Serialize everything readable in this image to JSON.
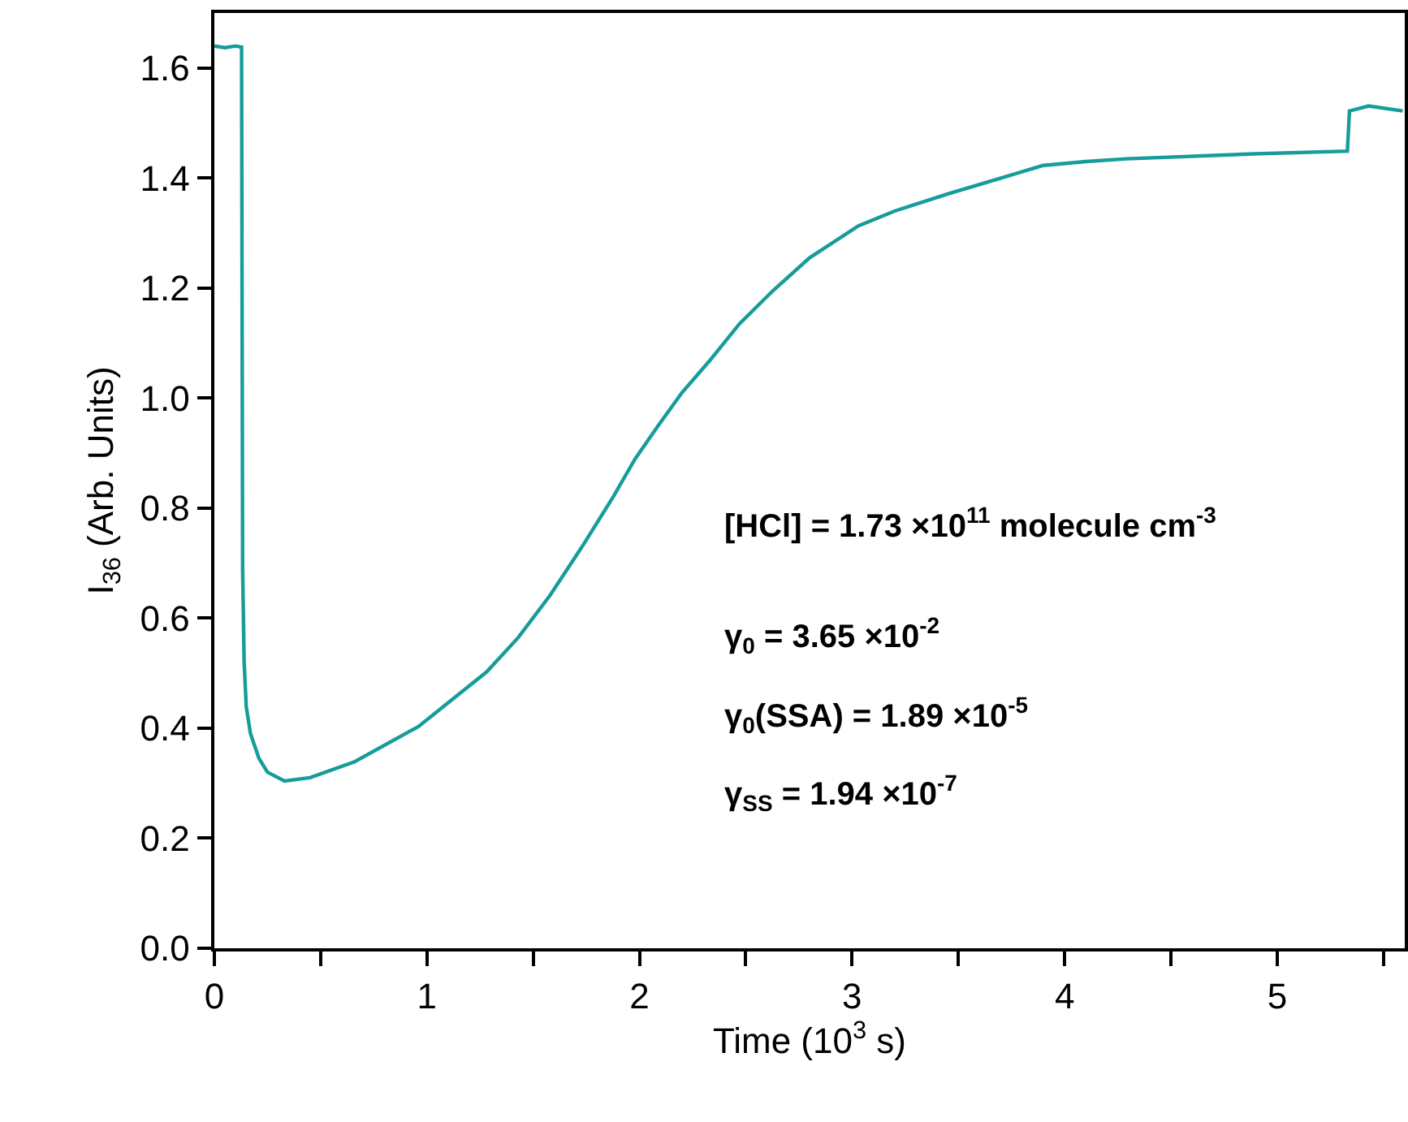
{
  "chart_data": {
    "type": "line",
    "xlabel": "Time (10$^{3}$ s)",
    "ylabel": "I$_{36}$ (Arb. Units)",
    "x": [
      0,
      0.05,
      0.1,
      0.128,
      0.133,
      0.14,
      0.15,
      0.17,
      0.21,
      0.25,
      0.33,
      0.45,
      0.66,
      0.96,
      1.28,
      1.43,
      1.58,
      1.73,
      1.88,
      1.98,
      2.09,
      2.2,
      2.33,
      2.47,
      2.63,
      2.8,
      3.03,
      3.2,
      3.45,
      3.7,
      3.9,
      4.1,
      4.29,
      4.89,
      5.33,
      5.34,
      5.43,
      5.59
    ],
    "series": [
      {
        "color": "#169c9a",
        "values": [
          1.64,
          1.637,
          1.64,
          1.638,
          0.69,
          0.52,
          0.439,
          0.39,
          0.345,
          0.32,
          0.304,
          0.31,
          0.339,
          0.403,
          0.502,
          0.565,
          0.642,
          0.73,
          0.823,
          0.89,
          0.951,
          1.01,
          1.068,
          1.135,
          1.196,
          1.255,
          1.313,
          1.34,
          1.371,
          1.4,
          1.423,
          1.43,
          1.435,
          1.444,
          1.449,
          1.522,
          1.531,
          1.522
        ]
      }
    ],
    "xlim": [
      0,
      5.6
    ],
    "ylim": [
      0,
      1.7
    ],
    "xticks": [
      0,
      {
        "value": 0.5,
        "label": null
      },
      1,
      {
        "value": 1.5,
        "label": null
      },
      2,
      {
        "value": 2.5,
        "label": null
      },
      3,
      {
        "value": 3.5,
        "label": null
      },
      4,
      {
        "value": 4.5,
        "label": null
      },
      5,
      {
        "value": 5.5,
        "label": null
      }
    ],
    "yticks": [
      {
        "value": 0,
        "label": "0.0"
      },
      0.2,
      0.4,
      0.6,
      0.8,
      {
        "value": 1.0,
        "label": "1.0"
      },
      1.2,
      1.4,
      1.6
    ],
    "marker": "none",
    "line_style": "solid",
    "annotations": [
      "[HCl] = 1.73 ×10$^{11}$ molecule cm$^{-3}$",
      "γ$_{0}$ = 3.65 ×10$^{-2}$",
      "γ$_{0}$(SSA) = 1.89 ×10$^{-5}$",
      "γ$_{SS}$ = 1.94 ×10$^{-7}$"
    ]
  }
}
